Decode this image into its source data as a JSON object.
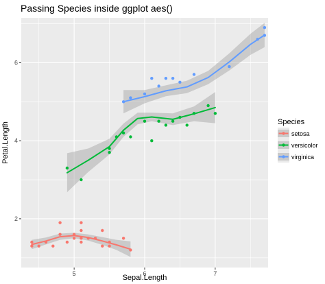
{
  "chart_data": {
    "type": "scatter",
    "title": "Passing Species inside ggplot aes()",
    "xlabel": "Sepal.Length",
    "ylabel": "Petal.Length",
    "xlim": [
      4.25,
      7.75
    ],
    "ylim": [
      0.75,
      7.15
    ],
    "x_ticks": [
      {
        "value": 5,
        "label": "5"
      },
      {
        "value": 6,
        "label": "6"
      },
      {
        "value": 7,
        "label": "7"
      }
    ],
    "y_ticks": [
      {
        "value": 2,
        "label": "2"
      },
      {
        "value": 4,
        "label": "4"
      },
      {
        "value": 6,
        "label": "6"
      }
    ],
    "grid": true,
    "legend_position": "right",
    "legend_title": "Species",
    "series": [
      {
        "name": "setosa",
        "color": "#F8766D",
        "points": [
          [
            4.4,
            1.4
          ],
          [
            4.4,
            1.3
          ],
          [
            4.5,
            1.3
          ],
          [
            4.6,
            1.4
          ],
          [
            4.7,
            1.3
          ],
          [
            4.8,
            1.6
          ],
          [
            4.8,
            1.9
          ],
          [
            4.9,
            1.4
          ],
          [
            5.0,
            1.5
          ],
          [
            5.0,
            1.6
          ],
          [
            5.1,
            1.9
          ],
          [
            5.1,
            1.7
          ],
          [
            5.1,
            1.5
          ],
          [
            5.1,
            1.4
          ],
          [
            5.2,
            1.5
          ],
          [
            5.3,
            1.5
          ],
          [
            5.4,
            1.7
          ],
          [
            5.4,
            1.3
          ],
          [
            5.5,
            1.4
          ],
          [
            5.5,
            1.3
          ],
          [
            5.7,
            1.5
          ],
          [
            5.8,
            1.2
          ]
        ],
        "smooth": [
          [
            4.4,
            1.34
          ],
          [
            4.6,
            1.43
          ],
          [
            4.8,
            1.54
          ],
          [
            5.0,
            1.57
          ],
          [
            5.2,
            1.52
          ],
          [
            5.4,
            1.43
          ],
          [
            5.6,
            1.33
          ],
          [
            5.8,
            1.22
          ]
        ],
        "band": [
          [
            4.4,
            1.22,
            1.46
          ],
          [
            4.6,
            1.34,
            1.52
          ],
          [
            4.8,
            1.46,
            1.62
          ],
          [
            5.0,
            1.5,
            1.64
          ],
          [
            5.2,
            1.44,
            1.6
          ],
          [
            5.4,
            1.33,
            1.53
          ],
          [
            5.6,
            1.2,
            1.46
          ],
          [
            5.8,
            1.02,
            1.42
          ]
        ]
      },
      {
        "name": "versicolor",
        "color": "#00BA38",
        "points": [
          [
            4.9,
            3.3
          ],
          [
            5.1,
            3.0
          ],
          [
            5.5,
            3.7
          ],
          [
            5.5,
            3.8
          ],
          [
            5.6,
            4.1
          ],
          [
            5.7,
            4.2
          ],
          [
            5.8,
            4.1
          ],
          [
            6.0,
            4.5
          ],
          [
            6.1,
            4.0
          ],
          [
            6.2,
            4.5
          ],
          [
            6.3,
            4.4
          ],
          [
            6.4,
            4.5
          ],
          [
            6.5,
            4.6
          ],
          [
            6.6,
            4.4
          ],
          [
            6.7,
            4.7
          ],
          [
            6.9,
            4.9
          ],
          [
            7.0,
            4.7
          ]
        ],
        "smooth": [
          [
            4.9,
            3.18
          ],
          [
            5.2,
            3.5
          ],
          [
            5.5,
            3.85
          ],
          [
            5.7,
            4.27
          ],
          [
            5.9,
            4.57
          ],
          [
            6.1,
            4.61
          ],
          [
            6.4,
            4.55
          ],
          [
            6.7,
            4.69
          ],
          [
            7.0,
            4.85
          ]
        ],
        "band": [
          [
            4.9,
            2.68,
            3.68
          ],
          [
            5.2,
            3.2,
            3.8
          ],
          [
            5.5,
            3.65,
            4.05
          ],
          [
            5.7,
            4.1,
            4.44
          ],
          [
            5.9,
            4.42,
            4.72
          ],
          [
            6.1,
            4.5,
            4.72
          ],
          [
            6.4,
            4.4,
            4.7
          ],
          [
            6.7,
            4.5,
            4.88
          ],
          [
            7.0,
            4.45,
            5.25
          ]
        ]
      },
      {
        "name": "virginica",
        "color": "#619CFF",
        "points": [
          [
            5.7,
            5.0
          ],
          [
            5.8,
            5.1
          ],
          [
            6.0,
            5.2
          ],
          [
            6.1,
            5.6
          ],
          [
            6.2,
            5.4
          ],
          [
            6.3,
            5.6
          ],
          [
            6.4,
            5.6
          ],
          [
            6.5,
            5.5
          ],
          [
            6.7,
            5.7
          ],
          [
            7.2,
            5.9
          ],
          [
            7.6,
            6.6
          ],
          [
            7.7,
            6.7
          ],
          [
            7.7,
            6.9
          ]
        ],
        "smooth": [
          [
            5.7,
            5.0
          ],
          [
            6.0,
            5.13
          ],
          [
            6.3,
            5.28
          ],
          [
            6.6,
            5.38
          ],
          [
            6.9,
            5.62
          ],
          [
            7.2,
            6.02
          ],
          [
            7.5,
            6.47
          ],
          [
            7.7,
            6.71
          ]
        ],
        "band": [
          [
            5.7,
            4.7,
            5.3
          ],
          [
            6.0,
            4.96,
            5.3
          ],
          [
            6.3,
            5.14,
            5.42
          ],
          [
            6.6,
            5.22,
            5.54
          ],
          [
            6.9,
            5.45,
            5.79
          ],
          [
            7.2,
            5.8,
            6.24
          ],
          [
            7.5,
            6.2,
            6.74
          ],
          [
            7.7,
            6.4,
            7.02
          ]
        ]
      }
    ]
  }
}
